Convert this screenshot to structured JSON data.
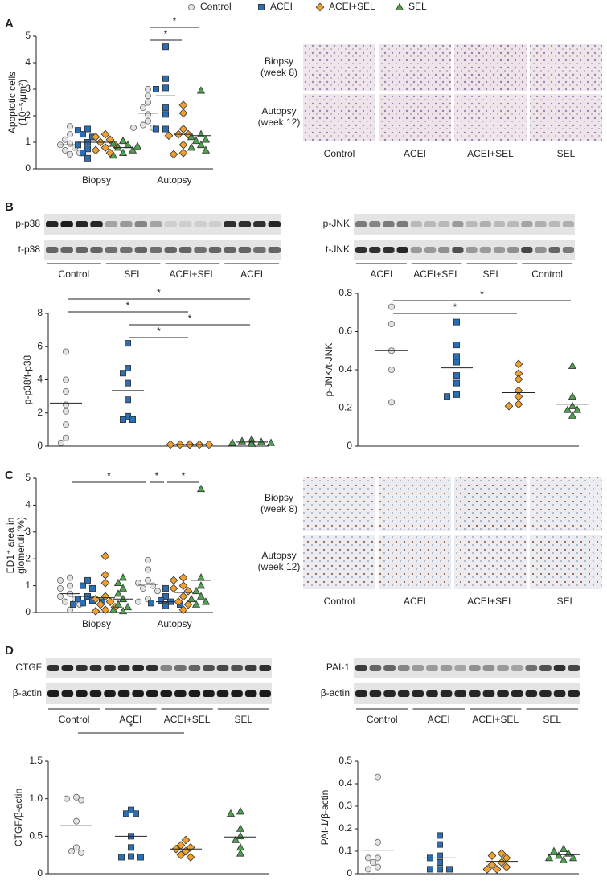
{
  "legend": [
    {
      "name": "Control",
      "color": "#e2e2e2",
      "marker": "circle"
    },
    {
      "name": "ACEI",
      "color": "#2a6fb5",
      "marker": "square"
    },
    {
      "name": "ACEI+SEL",
      "color": "#f0a030",
      "marker": "diamond"
    },
    {
      "name": "SEL",
      "color": "#4ea24e",
      "marker": "triangle"
    }
  ],
  "panels": [
    "A",
    "B",
    "C",
    "D"
  ],
  "micrographs": [
    {
      "rows": [
        [
          "Biopsy",
          "(week 8)"
        ],
        [
          "Autopsy",
          "(week 12)"
        ]
      ],
      "columns": [
        "Control",
        "ACEI",
        "ACEI+SEL",
        "SEL"
      ]
    },
    {
      "rows": [
        [
          "Biopsy",
          "(week 8)"
        ],
        [
          "Autopsy",
          "(week 12)"
        ]
      ],
      "columns": [
        "Control",
        "ACEI",
        "ACEI+SEL",
        "SEL"
      ]
    }
  ],
  "blots": [
    {
      "rows": [
        "p-p38",
        "t-p38"
      ],
      "groups": [
        "Control",
        "SEL",
        "ACEI+SEL",
        "ACEI"
      ]
    },
    {
      "rows": [
        "p-JNK",
        "t-JNK"
      ],
      "groups": [
        "ACEI",
        "ACEI+SEL",
        "SEL",
        "Control"
      ]
    },
    {
      "rows": [
        "CTGF",
        "β-actin"
      ],
      "groups": [
        "Control",
        "ACEI",
        "ACEI+SEL",
        "SEL"
      ]
    },
    {
      "rows": [
        "PAI-1",
        "β-actin"
      ],
      "groups": [
        "Control",
        "ACEI",
        "ACEI+SEL",
        "SEL"
      ]
    }
  ],
  "chart_data": [
    {
      "type": "dot",
      "ylabel": [
        "Apoptotic cells",
        "(10⁻⁵/μm²)"
      ],
      "categories": [
        "Biopsy",
        "Autopsy"
      ],
      "ylim": [
        0,
        5
      ],
      "yticks": [
        0,
        1,
        2,
        3,
        4,
        5
      ],
      "series": [
        {
          "values": [
            [
              1.6,
              1.3,
              1.1,
              0.95,
              0.9,
              0.8,
              0.7,
              0.6,
              0.55
            ],
            [
              3.0,
              2.75,
              2.5,
              2.3,
              2.05,
              1.8,
              1.65,
              1.55,
              1.55
            ]
          ],
          "means": [
            0.9,
            2.1
          ]
        },
        {
          "values": [
            [
              1.5,
              1.45,
              1.3,
              1.2,
              1.0,
              0.9,
              0.75,
              0.6,
              0.4
            ],
            [
              4.6,
              3.4,
              3.05,
              3.0,
              2.3,
              2.05,
              1.5,
              1.5
            ]
          ],
          "means": [
            1.0,
            2.75
          ]
        },
        {
          "values": [
            [
              1.3,
              1.2,
              1.1,
              1.0,
              0.9,
              0.8,
              0.7,
              0.6
            ],
            [
              2.4,
              2.1,
              1.5,
              1.3,
              1.3,
              1.25,
              0.9,
              0.6,
              0.55
            ]
          ],
          "means": [
            1.0,
            1.3
          ]
        },
        {
          "values": [
            [
              1.05,
              0.95,
              0.9,
              0.85,
              0.8,
              0.7,
              0.6,
              0.5
            ],
            [
              2.95,
              1.3,
              1.2,
              1.1,
              1.05,
              0.9,
              0.8,
              0.7
            ]
          ],
          "means": [
            0.8,
            1.25
          ]
        }
      ],
      "comparisons": [
        {
          "between": [
            [
              0,
              1
            ],
            [
              2,
              1
            ]
          ],
          "label": "*"
        },
        {
          "between": [
            [
              0,
              1
            ],
            [
              3,
              1
            ]
          ],
          "label": "*"
        }
      ]
    },
    {
      "type": "dot",
      "ylabel": [
        "p-p38/t-p38"
      ],
      "ylim": [
        0,
        8
      ],
      "yticks": [
        0,
        2,
        4,
        6,
        8
      ],
      "series": [
        {
          "values": [
            5.7,
            4.0,
            3.3,
            2.5,
            2.1,
            1.3,
            0.5,
            0.2
          ],
          "mean": 2.6
        },
        {
          "values": [
            6.2,
            4.7,
            4.4,
            3.8,
            2.8,
            1.8,
            1.6,
            1.6
          ],
          "mean": 3.35
        },
        {
          "values": [
            0.1,
            0.1,
            0.1,
            0.1,
            0.1,
            0.1,
            0.1,
            0.1
          ],
          "mean": 0.1
        },
        {
          "values": [
            0.4,
            0.3,
            0.25,
            0.2,
            0.2,
            0.2,
            0.15
          ],
          "mean": 0.25
        }
      ],
      "comparisons": [
        {
          "between": [
            1,
            2
          ],
          "label": "*"
        },
        {
          "between": [
            1,
            3
          ],
          "label": "*"
        },
        {
          "between": [
            0,
            2
          ],
          "label": "*"
        },
        {
          "between": [
            0,
            3
          ],
          "label": "*"
        }
      ]
    },
    {
      "type": "dot",
      "ylabel": [
        "p-JNK/t-JNK"
      ],
      "ylim": [
        0,
        0.8
      ],
      "yticks": [
        0,
        0.2,
        0.4,
        0.6,
        0.8
      ],
      "series": [
        {
          "values": [
            0.73,
            0.64,
            0.5,
            0.4,
            0.23
          ],
          "mean": 0.5
        },
        {
          "values": [
            0.65,
            0.53,
            0.47,
            0.44,
            0.37,
            0.33,
            0.27,
            0.26
          ],
          "mean": 0.41
        },
        {
          "values": [
            0.43,
            0.38,
            0.35,
            0.29,
            0.26,
            0.22,
            0.21
          ],
          "mean": 0.28
        },
        {
          "values": [
            0.42,
            0.26,
            0.21,
            0.19,
            0.19,
            0.16
          ],
          "mean": 0.22
        }
      ],
      "comparisons": [
        {
          "between": [
            0,
            2
          ],
          "label": "*"
        },
        {
          "between": [
            0,
            3
          ],
          "label": "*"
        }
      ]
    },
    {
      "type": "dot",
      "ylabel": [
        "ED1⁺ area in",
        "glomeruli (%)"
      ],
      "categories": [
        "Biopsy",
        "Autopsy"
      ],
      "ylim": [
        0,
        5
      ],
      "yticks": [
        0,
        1,
        2,
        3,
        4,
        5
      ],
      "series": [
        {
          "values": [
            [
              1.3,
              1.2,
              1.0,
              0.9,
              0.7,
              0.6,
              0.5,
              0.4,
              0.3,
              0.1
            ],
            [
              1.95,
              1.6,
              1.2,
              1.1,
              1.0,
              0.9,
              0.8,
              0.5,
              0.4
            ]
          ],
          "means": [
            0.7,
            1.05
          ]
        },
        {
          "values": [
            [
              1.2,
              1.0,
              0.9,
              0.6,
              0.5,
              0.45,
              0.4,
              0.35,
              0.3
            ],
            [
              0.9,
              0.6,
              0.45,
              0.4,
              0.35,
              0.3,
              0.3,
              0.25
            ]
          ],
          "means": [
            0.6,
            0.4
          ]
        },
        {
          "values": [
            [
              2.1,
              1.4,
              1.1,
              0.6,
              0.5,
              0.4,
              0.3,
              0.2,
              0.1,
              0.05
            ],
            [
              1.3,
              1.2,
              1.0,
              0.9,
              0.8,
              0.6,
              0.4,
              0.3,
              0.1
            ]
          ],
          "means": [
            0.55,
            0.75
          ]
        },
        {
          "values": [
            [
              1.3,
              1.1,
              0.9,
              0.7,
              0.5,
              0.3,
              0.2,
              0.1,
              0.05
            ],
            [
              4.6,
              1.3,
              1.0,
              0.8,
              0.6,
              0.5,
              0.4,
              0.3
            ]
          ],
          "means": [
            0.5,
            1.2
          ]
        }
      ],
      "comparisons": [
        {
          "between": [
            [
              0,
              0
            ],
            [
              0,
              1
            ]
          ],
          "label": "*"
        },
        {
          "between": [
            [
              0,
              1
            ],
            [
              1,
              1
            ]
          ],
          "label": "*"
        },
        {
          "between": [
            [
              1,
              1
            ],
            [
              3,
              1
            ]
          ],
          "label": "*"
        }
      ]
    },
    {
      "type": "dot",
      "ylabel": [
        "CTGF/β-actin"
      ],
      "ylim": [
        0,
        1.5
      ],
      "yticks": [
        0,
        0.5,
        {
          "value": 1,
          "label": "1.0"
        },
        1.5
      ],
      "series": [
        {
          "values": [
            1.02,
            1.0,
            0.98,
            0.7,
            0.35,
            0.3,
            0.28
          ],
          "mean": 0.64
        },
        {
          "values": [
            0.85,
            0.8,
            0.8,
            0.5,
            0.35,
            0.23,
            0.22,
            0.22
          ],
          "mean": 0.5
        },
        {
          "values": [
            0.45,
            0.38,
            0.35,
            0.33,
            0.3,
            0.25,
            0.22
          ],
          "mean": 0.33
        },
        {
          "values": [
            0.83,
            0.8,
            0.6,
            0.5,
            0.45,
            0.35,
            0.27
          ],
          "mean": 0.49
        }
      ],
      "comparisons": [
        {
          "between": [
            0,
            2
          ],
          "label": "*"
        }
      ]
    },
    {
      "type": "dot",
      "ylabel": [
        "PAI-1/β-actin"
      ],
      "ylim": [
        0,
        0.5
      ],
      "yticks": [
        0,
        0.1,
        0.2,
        0.3,
        0.4,
        0.5
      ],
      "series": [
        {
          "values": [
            0.43,
            0.14,
            0.07,
            0.07,
            0.05,
            0.03,
            0.02
          ],
          "mean": 0.105
        },
        {
          "values": [
            0.17,
            0.13,
            0.08,
            0.07,
            0.05,
            0.02,
            0.02,
            0.02
          ],
          "mean": 0.07
        },
        {
          "values": [
            0.09,
            0.08,
            0.07,
            0.05,
            0.04,
            0.03,
            0.02,
            0.02
          ],
          "mean": 0.055
        },
        {
          "values": [
            0.11,
            0.1,
            0.09,
            0.08,
            0.07,
            0.07,
            0.06
          ],
          "mean": 0.085
        }
      ],
      "comparisons": []
    }
  ]
}
